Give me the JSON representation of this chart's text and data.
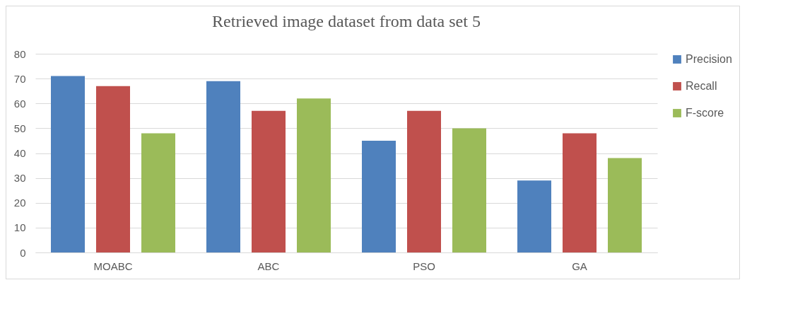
{
  "chart_data": {
    "type": "bar",
    "title": "Retrieved image dataset from data set 5",
    "categories": [
      "MOABC",
      "ABC",
      "PSO",
      "GA"
    ],
    "series": [
      {
        "name": "Precision",
        "color": "#4f81bd",
        "values": [
          71,
          69,
          45,
          29
        ]
      },
      {
        "name": "Recall",
        "color": "#c0504d",
        "values": [
          67,
          57,
          57,
          48
        ]
      },
      {
        "name": "F-score",
        "color": "#9bbb59",
        "values": [
          48,
          62,
          50,
          38
        ]
      }
    ],
    "ylim": [
      0,
      80
    ],
    "yticks": [
      0,
      10,
      20,
      30,
      40,
      50,
      60,
      70,
      80
    ],
    "grid": "y",
    "legend": "right"
  }
}
